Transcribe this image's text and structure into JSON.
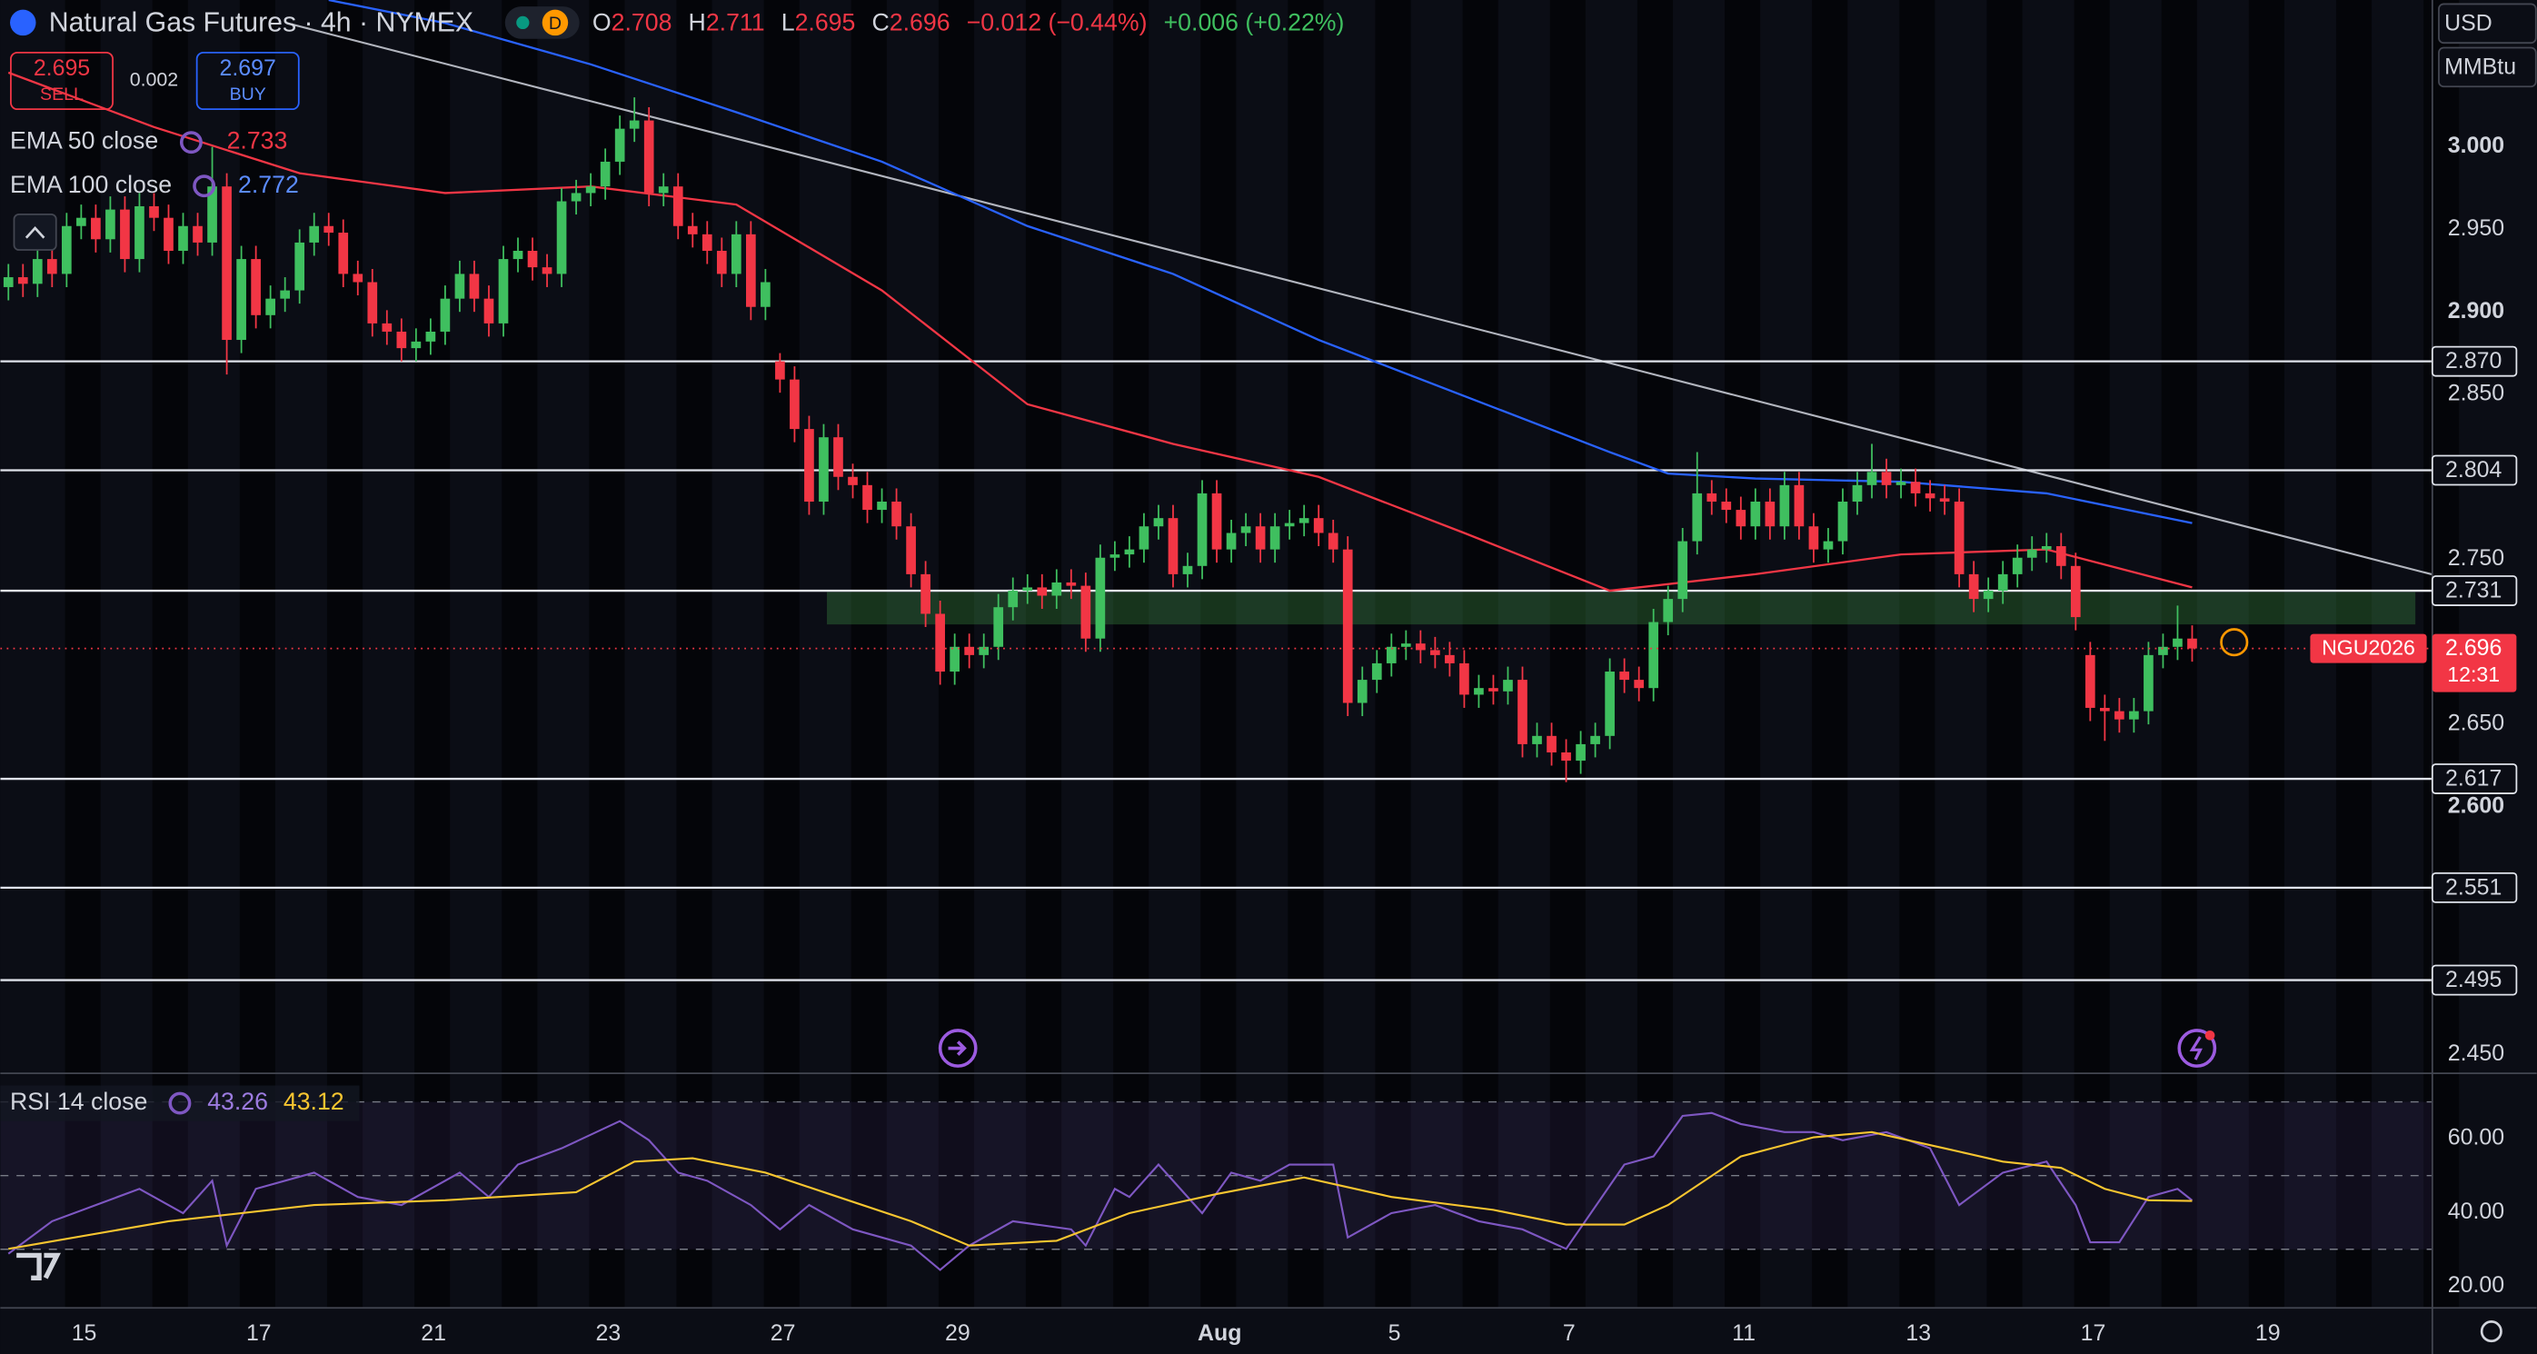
{
  "header": {
    "title": "Natural Gas Futures · 4h · NYMEX",
    "badge": "D",
    "ohlc": [
      {
        "key": "O",
        "value": 2.708
      },
      {
        "key": "H",
        "value": 2.711
      },
      {
        "key": "L",
        "value": 2.695
      },
      {
        "key": "C",
        "value": 2.696
      }
    ],
    "change": "−0.012 (−0.44%)",
    "ext_change": "+0.006 (+0.22%)"
  },
  "trade": {
    "sell_price": 2.695,
    "sell": "SELL",
    "spread": 0.002,
    "buy_price": 2.697,
    "buy": "BUY"
  },
  "units": {
    "currency": "USD",
    "unit": "MMBtu"
  },
  "chart_data": [
    {
      "type": "candlestick",
      "xlim": [
        -0.556,
        166.444
      ],
      "ylim": [
        2.439,
        3.089
      ],
      "grid": false,
      "xticks": [
        {
          "value": 5.2,
          "label": "15"
        },
        {
          "value": 17.2,
          "label": "17"
        },
        {
          "value": 29.2,
          "label": "21"
        },
        {
          "value": 41.2,
          "label": "23"
        },
        {
          "value": 53.2,
          "label": "27"
        },
        {
          "value": 65.2,
          "label": "29"
        },
        {
          "value": 83.2,
          "label": "Aug"
        },
        {
          "value": 95.2,
          "label": "5"
        },
        {
          "value": 107.2,
          "label": "7"
        },
        {
          "value": 119.2,
          "label": "11"
        },
        {
          "value": 131.2,
          "label": "13"
        },
        {
          "value": 143.2,
          "label": "17"
        },
        {
          "value": 155.2,
          "label": "19"
        }
      ],
      "yticks": [
        {
          "value": 3.0,
          "label": "3.000"
        },
        {
          "value": 2.95,
          "label": "2.950"
        },
        {
          "value": 2.9,
          "label": "2.900"
        },
        {
          "value": 2.85,
          "label": "2.850"
        },
        {
          "value": 2.75,
          "label": "2.750"
        },
        {
          "value": 2.65,
          "label": "2.650"
        },
        {
          "value": 2.6,
          "label": "2.600"
        },
        {
          "value": 2.45,
          "label": "2.450"
        }
      ],
      "series": [
        {
          "up_color": "#3fbf5f",
          "down_color": "#f23645",
          "open": [
            2.915,
            2.921,
            2.917,
            2.932,
            2.923,
            2.952,
            2.957,
            2.944,
            2.962,
            2.932,
            2.964,
            2.957,
            2.937,
            2.952,
            2.942,
            2.976,
            2.883,
            2.932,
            2.898,
            2.908,
            2.913,
            2.942,
            2.952,
            2.948,
            2.923,
            2.918,
            2.893,
            2.888,
            2.878,
            2.882,
            2.888,
            2.908,
            2.923,
            2.908,
            2.893,
            2.932,
            2.937,
            2.927,
            2.923,
            2.967,
            2.972,
            2.976,
            2.991,
            3.011,
            3.016,
            2.972,
            2.976,
            2.952,
            2.947,
            2.937,
            2.923,
            2.947,
            2.903,
            2.87,
            2.859,
            2.829,
            2.785,
            2.824,
            2.8,
            2.795,
            2.78,
            2.785,
            2.77,
            2.741,
            2.717,
            2.682,
            2.697,
            2.692,
            2.697,
            2.721,
            2.731,
            2.733,
            2.728,
            2.736,
            2.734,
            2.702,
            2.751,
            2.753,
            2.756,
            2.77,
            2.775,
            2.741,
            2.746,
            2.79,
            2.756,
            2.766,
            2.77,
            2.756,
            2.77,
            2.772,
            2.775,
            2.766,
            2.756,
            2.663,
            2.677,
            2.687,
            2.697,
            2.699,
            2.695,
            2.692,
            2.687,
            2.668,
            2.672,
            2.67,
            2.677,
            2.638,
            2.643,
            2.633,
            2.628,
            2.638,
            2.643,
            2.682,
            2.677,
            2.672,
            2.712,
            2.726,
            2.761,
            2.79,
            2.785,
            2.78,
            2.77,
            2.785,
            2.77,
            2.795,
            2.77,
            2.756,
            2.761,
            2.785,
            2.795,
            2.803,
            2.795,
            2.797,
            2.79,
            2.787,
            2.785,
            2.741,
            2.726,
            2.731,
            2.741,
            2.751,
            2.756,
            2.758,
            2.746,
            2.692,
            2.66,
            2.658,
            2.653,
            2.658,
            2.692,
            2.697,
            2.702
          ],
          "high": [
            2.929,
            2.929,
            2.94,
            2.94,
            2.96,
            2.965,
            2.965,
            2.97,
            2.97,
            2.972,
            2.972,
            2.965,
            2.96,
            2.96,
            3.0,
            2.984,
            2.94,
            2.94,
            2.916,
            2.921,
            2.95,
            2.96,
            2.96,
            2.956,
            2.931,
            2.926,
            2.901,
            2.896,
            2.89,
            2.896,
            2.916,
            2.931,
            2.931,
            2.916,
            2.94,
            2.945,
            2.945,
            2.935,
            2.975,
            2.98,
            2.984,
            2.999,
            3.019,
            3.03,
            3.024,
            2.984,
            2.984,
            2.96,
            2.955,
            2.945,
            2.955,
            2.955,
            2.926,
            2.875,
            2.867,
            2.837,
            2.832,
            2.832,
            2.808,
            2.803,
            2.793,
            2.793,
            2.778,
            2.749,
            2.725,
            2.705,
            2.705,
            2.705,
            2.729,
            2.739,
            2.741,
            2.741,
            2.744,
            2.744,
            2.742,
            2.759,
            2.761,
            2.764,
            2.778,
            2.783,
            2.783,
            2.754,
            2.798,
            2.798,
            2.774,
            2.778,
            2.778,
            2.778,
            2.78,
            2.783,
            2.783,
            2.774,
            2.764,
            2.685,
            2.695,
            2.705,
            2.707,
            2.707,
            2.703,
            2.7,
            2.695,
            2.68,
            2.68,
            2.685,
            2.685,
            2.651,
            2.651,
            2.641,
            2.646,
            2.651,
            2.69,
            2.69,
            2.685,
            2.72,
            2.734,
            2.769,
            2.815,
            2.798,
            2.793,
            2.788,
            2.793,
            2.793,
            2.803,
            2.803,
            2.778,
            2.769,
            2.793,
            2.803,
            2.82,
            2.811,
            2.805,
            2.805,
            2.798,
            2.795,
            2.793,
            2.749,
            2.739,
            2.749,
            2.759,
            2.764,
            2.766,
            2.766,
            2.754,
            2.7,
            2.668,
            2.666,
            2.666,
            2.7,
            2.705,
            2.722,
            2.71
          ],
          "low": [
            2.907,
            2.909,
            2.909,
            2.915,
            2.915,
            2.944,
            2.936,
            2.936,
            2.924,
            2.924,
            2.949,
            2.929,
            2.929,
            2.934,
            2.934,
            2.862,
            2.875,
            2.89,
            2.89,
            2.9,
            2.905,
            2.934,
            2.94,
            2.915,
            2.91,
            2.885,
            2.88,
            2.87,
            2.87,
            2.874,
            2.88,
            2.9,
            2.9,
            2.885,
            2.885,
            2.924,
            2.919,
            2.915,
            2.915,
            2.959,
            2.964,
            2.968,
            2.983,
            3.003,
            2.964,
            2.964,
            2.944,
            2.939,
            2.929,
            2.915,
            2.915,
            2.895,
            2.895,
            2.851,
            2.821,
            2.777,
            2.777,
            2.792,
            2.787,
            2.772,
            2.772,
            2.762,
            2.733,
            2.709,
            2.674,
            2.674,
            2.684,
            2.684,
            2.689,
            2.713,
            2.723,
            2.72,
            2.72,
            2.726,
            2.694,
            2.694,
            2.743,
            2.745,
            2.748,
            2.762,
            2.733,
            2.733,
            2.738,
            2.748,
            2.748,
            2.758,
            2.748,
            2.748,
            2.762,
            2.764,
            2.758,
            2.748,
            2.655,
            2.655,
            2.669,
            2.679,
            2.689,
            2.687,
            2.684,
            2.679,
            2.66,
            2.66,
            2.662,
            2.662,
            2.63,
            2.63,
            2.625,
            2.615,
            2.62,
            2.63,
            2.635,
            2.669,
            2.664,
            2.664,
            2.704,
            2.718,
            2.753,
            2.777,
            2.772,
            2.762,
            2.762,
            2.762,
            2.762,
            2.762,
            2.748,
            2.748,
            2.753,
            2.777,
            2.787,
            2.787,
            2.787,
            2.782,
            2.779,
            2.777,
            2.733,
            2.718,
            2.718,
            2.723,
            2.733,
            2.743,
            2.748,
            2.738,
            2.707,
            2.652,
            2.64,
            2.645,
            2.645,
            2.65,
            2.684,
            2.689,
            2.688
          ],
          "close": [
            2.921,
            2.917,
            2.932,
            2.923,
            2.952,
            2.957,
            2.944,
            2.962,
            2.932,
            2.964,
            2.957,
            2.937,
            2.952,
            2.942,
            2.976,
            2.883,
            2.932,
            2.898,
            2.908,
            2.913,
            2.942,
            2.952,
            2.948,
            2.923,
            2.918,
            2.893,
            2.888,
            2.878,
            2.882,
            2.888,
            2.908,
            2.923,
            2.908,
            2.893,
            2.932,
            2.937,
            2.927,
            2.923,
            2.967,
            2.972,
            2.976,
            2.991,
            3.011,
            3.016,
            2.972,
            2.976,
            2.952,
            2.947,
            2.937,
            2.923,
            2.947,
            2.903,
            2.918,
            2.859,
            2.829,
            2.785,
            2.824,
            2.8,
            2.795,
            2.78,
            2.785,
            2.77,
            2.741,
            2.717,
            2.682,
            2.697,
            2.692,
            2.697,
            2.721,
            2.731,
            2.733,
            2.728,
            2.736,
            2.734,
            2.702,
            2.751,
            2.753,
            2.756,
            2.77,
            2.775,
            2.741,
            2.746,
            2.79,
            2.756,
            2.766,
            2.77,
            2.756,
            2.77,
            2.772,
            2.775,
            2.766,
            2.756,
            2.663,
            2.677,
            2.687,
            2.697,
            2.699,
            2.695,
            2.692,
            2.687,
            2.668,
            2.672,
            2.67,
            2.677,
            2.638,
            2.643,
            2.633,
            2.628,
            2.638,
            2.643,
            2.682,
            2.677,
            2.672,
            2.712,
            2.726,
            2.761,
            2.79,
            2.785,
            2.78,
            2.77,
            2.785,
            2.77,
            2.795,
            2.77,
            2.756,
            2.761,
            2.785,
            2.795,
            2.803,
            2.795,
            2.797,
            2.79,
            2.787,
            2.785,
            2.741,
            2.726,
            2.731,
            2.741,
            2.751,
            2.756,
            2.758,
            2.746,
            2.715,
            2.66,
            2.658,
            2.653,
            2.658,
            2.692,
            2.697,
            2.702,
            2.696
          ]
        }
      ],
      "lines": [
        {
          "name": "EMA 50 close",
          "color": "#f23645",
          "legend_value": 2.733,
          "x": [
            0,
            10,
            20,
            30,
            40,
            50,
            60,
            70,
            80,
            90,
            100,
            110,
            120,
            130,
            140,
            150
          ],
          "values": [
            3.045,
            3.012,
            2.984,
            2.972,
            2.976,
            2.965,
            2.913,
            2.844,
            2.82,
            2.8,
            2.766,
            2.731,
            2.741,
            2.753,
            2.756,
            2.733
          ]
        },
        {
          "name": "EMA 100 close",
          "color": "#2962ff",
          "legend_value": 2.772,
          "x": [
            22,
            30,
            40,
            50,
            60,
            70,
            80,
            90,
            100,
            110,
            114,
            120,
            130,
            140,
            150
          ],
          "values": [
            3.089,
            3.075,
            3.05,
            3.021,
            2.991,
            2.952,
            2.923,
            2.883,
            2.849,
            2.815,
            2.802,
            2.799,
            2.797,
            2.79,
            2.772
          ]
        }
      ],
      "levels": [
        {
          "value": 2.87,
          "label": "2.870"
        },
        {
          "value": 2.804,
          "label": "2.804"
        },
        {
          "value": 2.731,
          "label": "2.731"
        },
        {
          "value": 2.617,
          "label": "2.617"
        },
        {
          "value": 2.551,
          "label": "2.551"
        },
        {
          "value": 2.495,
          "label": "2.495"
        }
      ],
      "last_price": {
        "symbol": "NGU2026",
        "value": 2.696,
        "countdown": "12:31",
        "color": "#f23645"
      }
    },
    {
      "type": "line",
      "title": "RSI 14 close",
      "ylim": [
        14.3,
        77.1
      ],
      "yticks": [
        {
          "value": 60,
          "label": "60.00"
        },
        {
          "value": 40,
          "label": "40.00"
        },
        {
          "value": 20,
          "label": "20.00"
        }
      ],
      "hlines": [
        70,
        50,
        30
      ],
      "series": [
        {
          "color": "#7e57c2",
          "legend_value": 43.26,
          "x": [
            0,
            3,
            6,
            9,
            12,
            14,
            15,
            17,
            21,
            24,
            27,
            31,
            33,
            35,
            38,
            42,
            44,
            46,
            48,
            51,
            53,
            55,
            58,
            62,
            64,
            66,
            69,
            73,
            74,
            76,
            77,
            79,
            82,
            84,
            86,
            88,
            91,
            92,
            95,
            98,
            101,
            104,
            107,
            111,
            113,
            115,
            117,
            119,
            122,
            124,
            126,
            129,
            132,
            134,
            137,
            140,
            142,
            143,
            145,
            147,
            149,
            150
          ],
          "values": [
            28.8,
            37.6,
            42,
            46.4,
            39.8,
            48.6,
            31,
            46.4,
            50.8,
            44.2,
            42,
            50.8,
            44.2,
            53,
            57.4,
            64.8,
            59.6,
            50.8,
            48.6,
            42,
            35.4,
            42,
            35.4,
            31,
            24.4,
            31,
            37.6,
            35.4,
            31,
            46.4,
            44.2,
            53,
            39.8,
            50.8,
            48.6,
            53,
            53,
            33.2,
            39.8,
            42,
            37.6,
            35.4,
            30.1,
            53,
            55.2,
            66.2,
            67,
            64,
            61.8,
            61.8,
            59.6,
            61.8,
            57.4,
            42,
            50.8,
            53.8,
            42,
            31.9,
            31.9,
            44.2,
            46.4,
            43.26
          ]
        },
        {
          "color": "#f7c530",
          "legend_value": 43.12,
          "x": [
            0,
            11,
            21,
            30,
            39,
            43,
            47,
            52,
            57,
            62,
            66,
            72,
            77,
            83,
            89,
            95,
            102,
            107,
            111,
            114,
            119,
            124,
            128,
            133,
            137,
            141,
            144,
            147,
            150
          ],
          "values": [
            30.1,
            37.6,
            42,
            43.3,
            45.5,
            53.8,
            54.7,
            50.8,
            44.2,
            37.6,
            31,
            32.3,
            39.8,
            45,
            49.5,
            44.2,
            40.7,
            36.7,
            36.7,
            42,
            55.2,
            60.4,
            61.8,
            57.4,
            53.8,
            52.1,
            46.4,
            43.3,
            43.12
          ]
        }
      ]
    }
  ]
}
